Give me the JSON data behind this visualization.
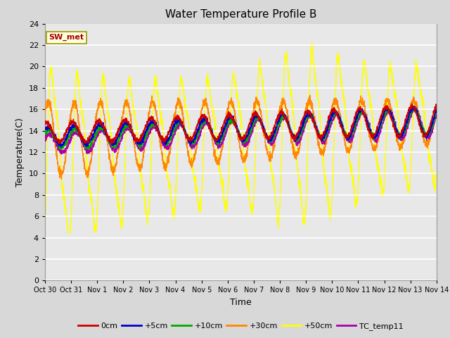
{
  "title": "Water Temperature Profile B",
  "xlabel": "Time",
  "ylabel": "Temperature(C)",
  "ylim": [
    0,
    24
  ],
  "yticks": [
    0,
    2,
    4,
    6,
    8,
    10,
    12,
    14,
    16,
    18,
    20,
    22,
    24
  ],
  "xtick_labels": [
    "Oct 30",
    "Oct 31",
    "Nov 1",
    "Nov 2",
    "Nov 3",
    "Nov 4",
    "Nov 5",
    "Nov 6",
    "Nov 7",
    "Nov 8",
    "Nov 9",
    "Nov 10",
    "Nov 11",
    "Nov 12",
    "Nov 13",
    "Nov 14"
  ],
  "colors": {
    "0cm": "#cc0000",
    "+5cm": "#0000cc",
    "+10cm": "#00aa00",
    "+30cm": "#ff8800",
    "+50cm": "#ffff00",
    "TC_temp11": "#aa00aa"
  },
  "annotation_text": "SW_met",
  "annotation_color": "#aa0000",
  "title_fontsize": 11,
  "axis_fontsize": 9,
  "tick_fontsize": 8
}
